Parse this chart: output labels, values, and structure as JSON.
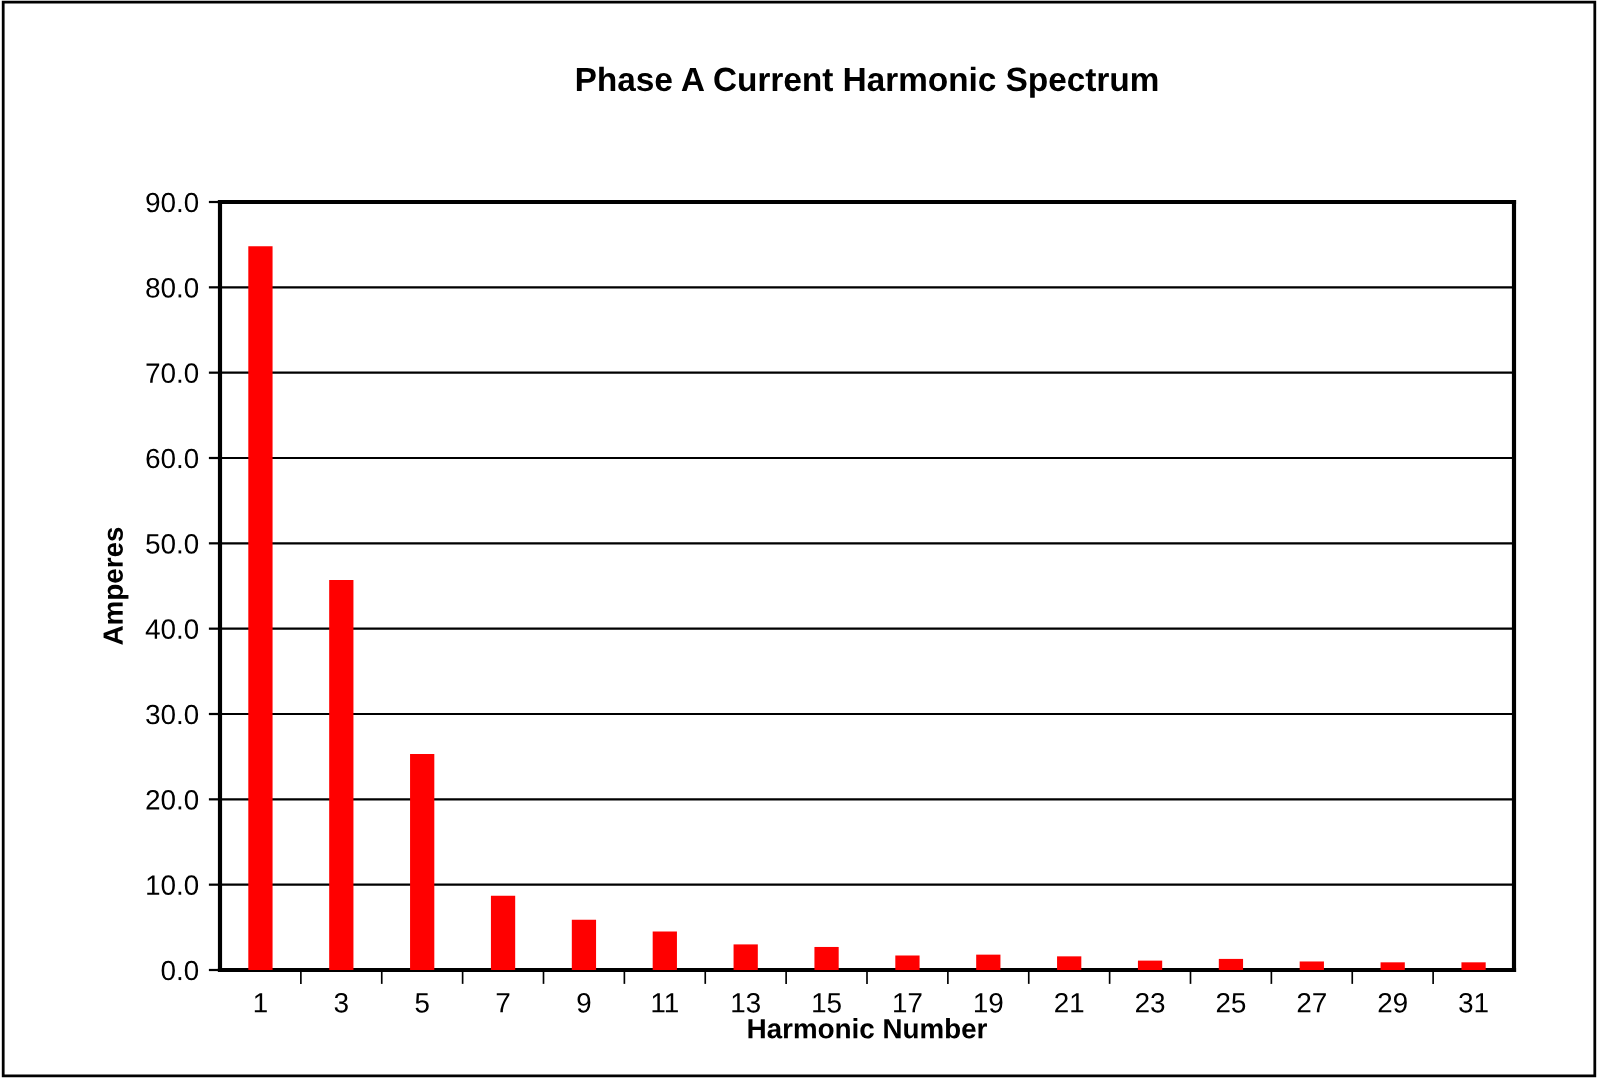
{
  "chart_data": {
    "type": "bar",
    "title": "Phase A Current Harmonic Spectrum",
    "xlabel": "Harmonic Number",
    "ylabel": "Amperes",
    "categories": [
      "1",
      "3",
      "5",
      "7",
      "9",
      "11",
      "13",
      "15",
      "17",
      "19",
      "21",
      "23",
      "25",
      "27",
      "29",
      "31"
    ],
    "values": [
      84.8,
      45.7,
      25.3,
      8.7,
      5.9,
      4.5,
      3.0,
      2.7,
      1.7,
      1.8,
      1.6,
      1.1,
      1.3,
      1.0,
      0.9,
      0.9
    ],
    "color": "#ff0000",
    "ylim": [
      0,
      90
    ],
    "yticks": [
      {
        "value": 0,
        "label": "0.0"
      },
      {
        "value": 10,
        "label": "10.0"
      },
      {
        "value": 20,
        "label": "20.0"
      },
      {
        "value": 30,
        "label": "30.0"
      },
      {
        "value": 40,
        "label": "40.0"
      },
      {
        "value": 50,
        "label": "50.0"
      },
      {
        "value": 60,
        "label": "60.0"
      },
      {
        "value": 70,
        "label": "70.0"
      },
      {
        "value": 80,
        "label": "80.0"
      },
      {
        "value": 90,
        "label": "90.0"
      }
    ],
    "grid": "y",
    "legend": false
  }
}
